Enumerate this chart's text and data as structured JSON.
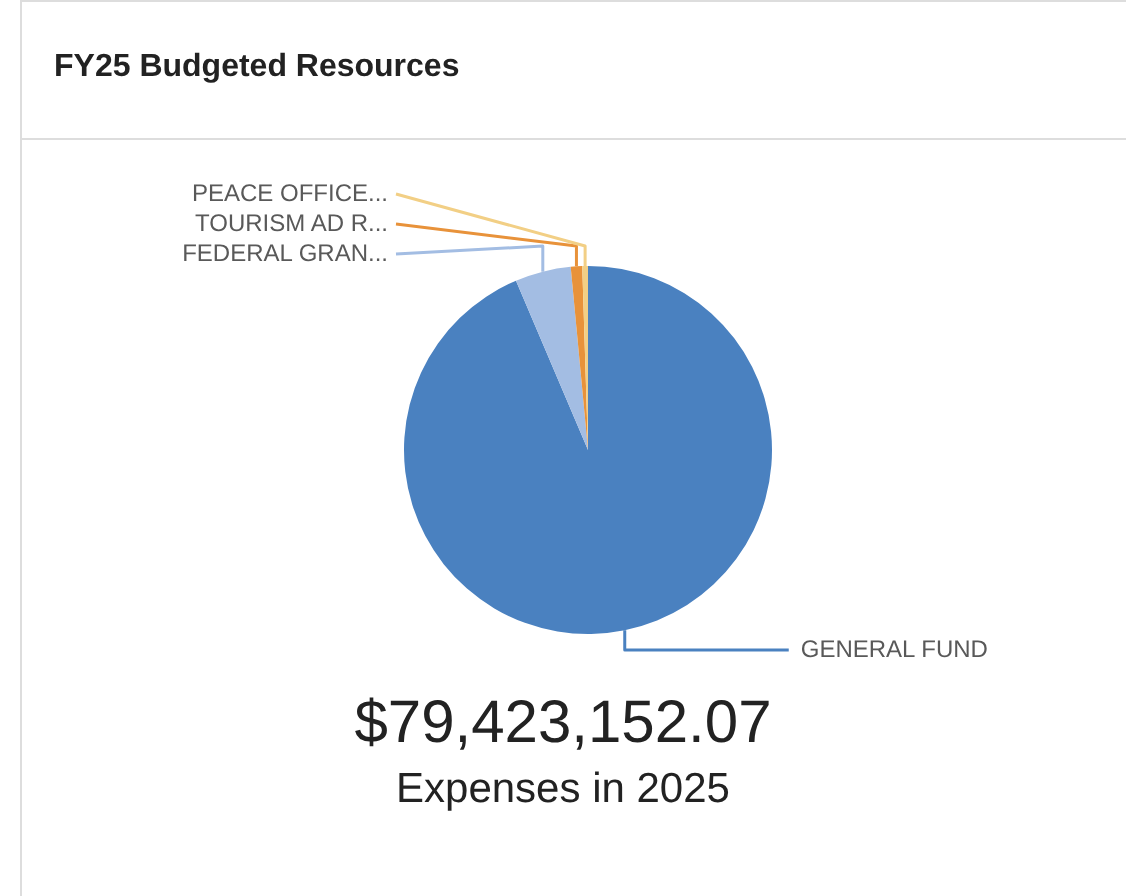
{
  "chart_data": {
    "type": "pie",
    "title": "FY25 Budgeted Resources",
    "categories": [
      "GENERAL FUND",
      "FEDERAL GRAN...",
      "TOURISM AD R...",
      "PEACE OFFICE..."
    ],
    "values": [
      93.6,
      4.9,
      1.0,
      0.5
    ],
    "colors": [
      "#4a81c0",
      "#a3bde3",
      "#e8923a",
      "#f2cf85"
    ],
    "legend": false,
    "annotations": [
      "$79,423,152.07",
      "Expenses in 2025"
    ]
  }
}
